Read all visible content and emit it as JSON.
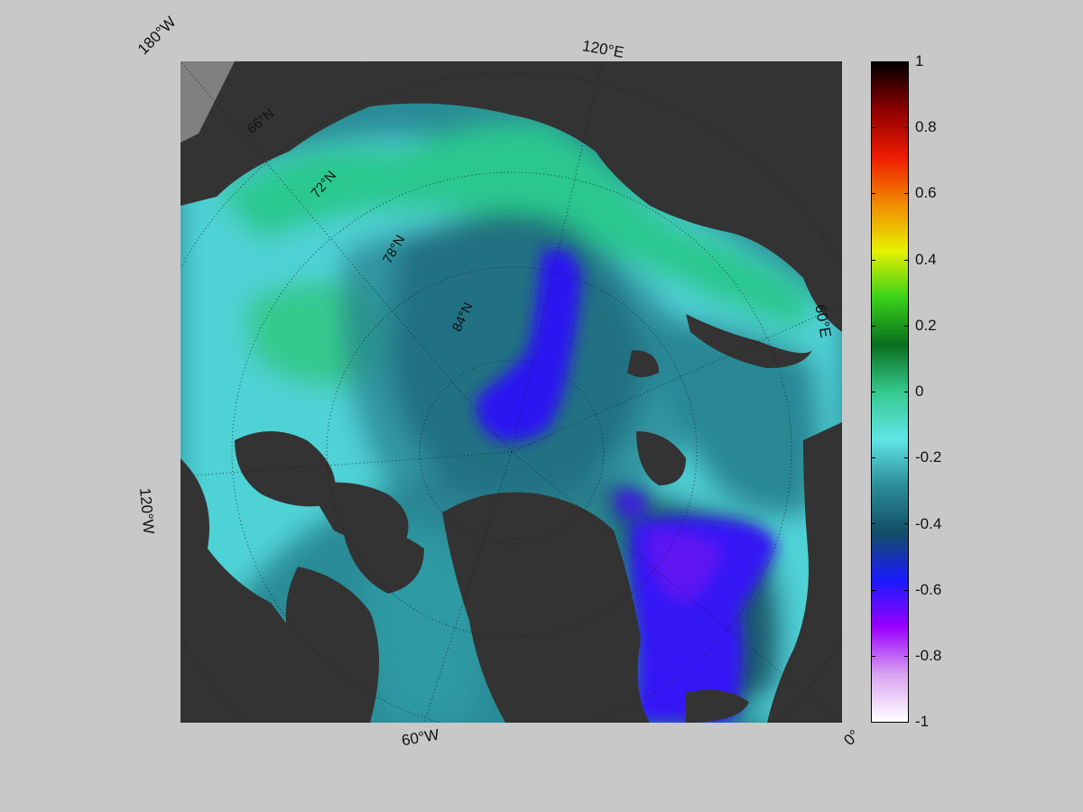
{
  "map": {
    "longitude_labels": {
      "w180": "180°W",
      "e120": "120°E",
      "e60": "60°E",
      "w120": "120°W",
      "w60": "60°W",
      "zero": "0°"
    },
    "latitude_labels": {
      "n66": "66°N",
      "n72": "72°N",
      "n78": "78°N",
      "n84": "84°N"
    },
    "colors": {
      "background": "#c8c8c8",
      "land": "#333333",
      "land_outer": "#808080"
    }
  },
  "colorbar": {
    "ticks": [
      "1",
      "0.8",
      "0.6",
      "0.4",
      "0.2",
      "0",
      "-0.2",
      "-0.4",
      "-0.6",
      "-0.8",
      "-1"
    ],
    "range": [
      -1,
      1
    ],
    "colormap": [
      "#ffffff",
      "#d8a4f0",
      "#9a00ff",
      "#1a1aff",
      "#124d66",
      "#2a8c96",
      "#5fe6e6",
      "#35c98e",
      "#0a6e1e",
      "#38d11a",
      "#e8f000",
      "#f08a00",
      "#ee1a00",
      "#8c0000",
      "#000000"
    ]
  }
}
